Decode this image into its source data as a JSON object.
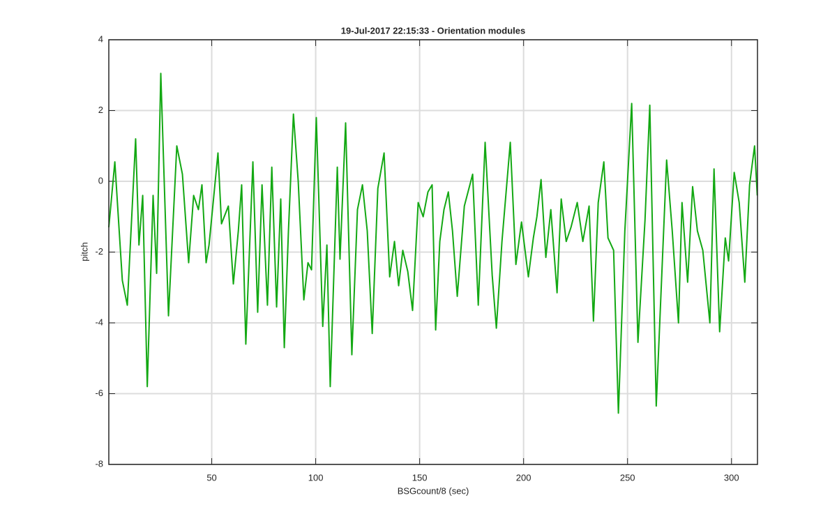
{
  "chart_data": {
    "type": "line",
    "title": "19-Jul-2017 22:15:33 - Orientation modules",
    "x_label": "BSGcount/8 (sec)",
    "y_label": "pitch",
    "color": "#13a813",
    "grid": true,
    "xlim": [
      0.5,
      312.5
    ],
    "ylim": [
      -8,
      4
    ],
    "xticks": [
      50,
      100,
      150,
      200,
      250,
      300
    ],
    "yticks": [
      -8,
      -6,
      -4,
      -2,
      0,
      2,
      4
    ],
    "x": [
      0.5,
      3.4,
      7,
      9.4,
      13.4,
      15,
      16.8,
      19,
      21.8,
      23.5,
      25.5,
      29.2,
      33.2,
      35.9,
      38.9,
      41.3,
      43.6,
      45.3,
      47.3,
      48.7,
      50.7,
      53,
      54.7,
      58,
      60.4,
      62.8,
      64.4,
      66.4,
      69.8,
      72.1,
      74.2,
      76.8,
      78.9,
      81.2,
      83.2,
      84.9,
      86.9,
      89.3,
      91.6,
      94.3,
      96.3,
      98,
      100.3,
      103.4,
      105.4,
      107,
      110.4,
      111.7,
      114.4,
      117.4,
      120.1,
      122.5,
      124.8,
      127.2,
      129.9,
      132.9,
      135.6,
      137.9,
      139.9,
      141.9,
      144.3,
      146.6,
      149.3,
      151.7,
      154,
      156,
      157.7,
      159.7,
      161.7,
      163.8,
      165.8,
      168.1,
      171.5,
      175.5,
      178.2,
      181.5,
      184.9,
      186.9,
      189.6,
      193.6,
      196.3,
      199,
      202.3,
      204.7,
      206.4,
      208.4,
      210.7,
      213.1,
      216.1,
      218.1,
      220.5,
      222.8,
      225.8,
      228.5,
      231.5,
      233.6,
      235.9,
      238.6,
      240.6,
      243.3,
      245.6,
      248.7,
      252,
      255,
      258.4,
      260.7,
      263.8,
      268.8,
      271.5,
      274.5,
      276.2,
      278.9,
      281.3,
      283.6,
      286.2,
      289.6,
      291.6,
      294.3,
      297,
      298.6,
      301.3,
      303.7,
      306.4,
      308.7,
      311.1,
      312.4
    ],
    "values": [
      -1.3,
      0.55,
      -2.8,
      -3.5,
      1.2,
      -1.8,
      -0.4,
      -5.8,
      -0.4,
      -2.6,
      3.05,
      -3.8,
      1.0,
      0.2,
      -2.3,
      -0.4,
      -0.8,
      -0.1,
      -2.3,
      -1.8,
      -0.6,
      0.8,
      -1.2,
      -0.7,
      -2.9,
      -1.4,
      -0.1,
      -4.6,
      0.55,
      -3.7,
      -0.1,
      -3.5,
      0.4,
      -3.55,
      -0.5,
      -4.7,
      -1.4,
      1.9,
      0,
      -3.35,
      -2.3,
      -2.5,
      1.8,
      -4.1,
      -1.8,
      -5.8,
      0.4,
      -2.2,
      1.65,
      -4.9,
      -0.8,
      -0.1,
      -1.4,
      -4.3,
      -0.2,
      0.8,
      -2.7,
      -1.7,
      -2.95,
      -1.95,
      -2.55,
      -3.65,
      -0.6,
      -1,
      -0.3,
      -0.1,
      -4.2,
      -1.7,
      -0.8,
      -0.3,
      -1.4,
      -3.25,
      -0.7,
      0.2,
      -3.5,
      1.1,
      -2.65,
      -4.15,
      -1.7,
      1.1,
      -2.35,
      -1.15,
      -2.7,
      -1.6,
      -1,
      0.05,
      -2.15,
      -0.8,
      -3.15,
      -0.5,
      -1.7,
      -1.3,
      -0.6,
      -1.7,
      -0.7,
      -3.95,
      -0.6,
      0.55,
      -1.6,
      -1.95,
      -6.55,
      -1.4,
      2.2,
      -4.55,
      -1.1,
      2.15,
      -6.35,
      0.6,
      -1.4,
      -4,
      -0.6,
      -2.85,
      -0.15,
      -1.4,
      -1.95,
      -4,
      0.35,
      -4.25,
      -1.6,
      -2.25,
      0.25,
      -0.6,
      -2.85,
      -0.1,
      1,
      -0.4
    ]
  }
}
